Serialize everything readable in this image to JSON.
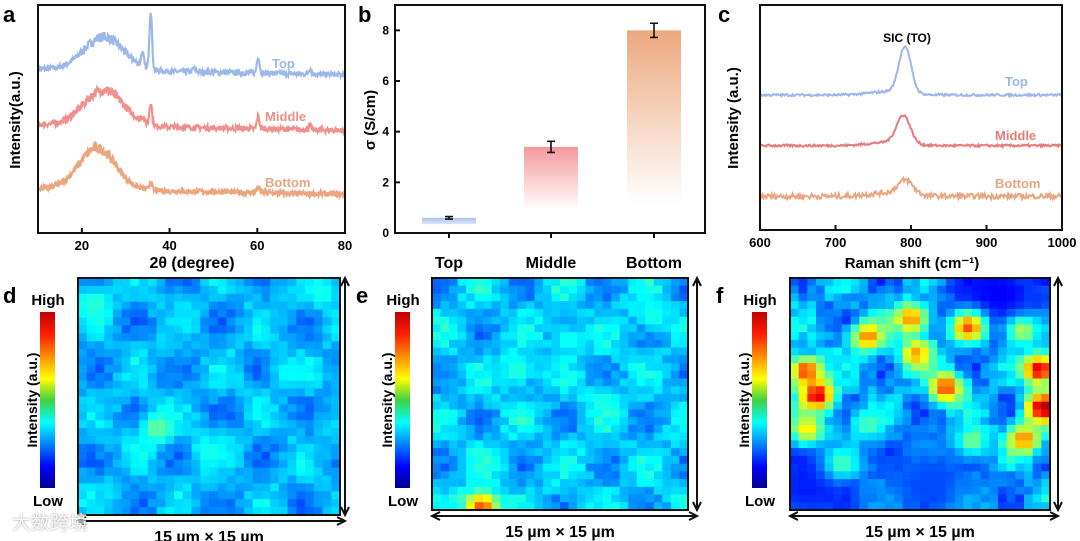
{
  "chart_data": [
    {
      "panel": "a",
      "type": "line",
      "xlabel": "2θ (degree)",
      "ylabel": "Intensity(a.u.)",
      "xlim": [
        10,
        80
      ],
      "xticks": [
        "20",
        "40",
        "60",
        "80"
      ],
      "xtick_values": [
        20,
        40,
        60,
        80
      ],
      "ylim": [
        -0.8,
        3.3
      ],
      "series": [
        {
          "name": "Top",
          "color": "#9db8e8",
          "offset": 2.15,
          "hump": {
            "center": 25,
            "sigma": 4.5,
            "height": 0.6
          },
          "peaks": [
            [
              33.8,
              0.25
            ],
            [
              35.7,
              1.05
            ],
            [
              45.5,
              0.06
            ],
            [
              60.2,
              0.3
            ],
            [
              72,
              0.1
            ]
          ]
        },
        {
          "name": "Middle",
          "color": "#f0908c",
          "offset": 1.15,
          "hump": {
            "center": 25,
            "sigma": 4.5,
            "height": 0.65
          },
          "peaks": [
            [
              33.8,
              0.1
            ],
            [
              35.7,
              0.4
            ],
            [
              60.2,
              0.22
            ],
            [
              72,
              0.08
            ]
          ]
        },
        {
          "name": "Bottom",
          "color": "#eba57f",
          "offset": 0,
          "hump": {
            "center": 23.5,
            "sigma": 4.2,
            "height": 0.75
          },
          "peaks": [
            [
              35.7,
              0.15
            ],
            [
              60.2,
              0.1
            ]
          ]
        }
      ]
    },
    {
      "panel": "b",
      "type": "bar",
      "ylabel": "σ (S/cm)",
      "ylim": [
        0,
        9
      ],
      "yticks": [
        "0",
        "2",
        "4",
        "6",
        "8"
      ],
      "ytick_values": [
        0,
        2,
        4,
        6,
        8
      ],
      "categories": [
        "Top",
        "Middle",
        "Bottom"
      ],
      "values": [
        0.6,
        3.4,
        8.0
      ],
      "errors": [
        0.05,
        0.22,
        0.28
      ],
      "colors": [
        "#a8c2ee",
        "#f39a9a",
        "#eca97f"
      ]
    },
    {
      "panel": "c",
      "type": "line",
      "xlabel": "Raman shift (cm⁻¹)",
      "ylabel": "Intensity (a.u.)",
      "xlim": [
        600,
        1000
      ],
      "xticks": [
        "600",
        "700",
        "800",
        "900",
        "1000"
      ],
      "xtick_values": [
        600,
        700,
        800,
        900,
        1000
      ],
      "ylim": [
        -0.6,
        3.4
      ],
      "annotation": "SIC (TO)",
      "series": [
        {
          "name": "Top",
          "color": "#9db8e8",
          "offset": 1.8,
          "peak": {
            "center": 792,
            "sigma": 8,
            "height": 0.83
          }
        },
        {
          "name": "Middle",
          "color": "#e87c7a",
          "offset": 0.9,
          "peak": {
            "center": 790,
            "sigma": 9,
            "height": 0.5
          }
        },
        {
          "name": "Bottom",
          "color": "#eba57f",
          "offset": 0,
          "peak": {
            "center": 793,
            "sigma": 10,
            "height": 0.25
          }
        }
      ]
    },
    {
      "panel": "d",
      "type": "heatmap",
      "scale_label": "15 µm × 15 µm",
      "colorbar_label": "Intensity (a.u.)",
      "colorbar_high": "High",
      "colorbar_low": "Low",
      "extent_um": 15,
      "base": 0.3,
      "variation": 0.07,
      "hotspots": [
        [
          4.5,
          9.5,
          0.48
        ],
        [
          1,
          1.5,
          0.42
        ],
        [
          7.5,
          11,
          0.4
        ],
        [
          12,
          6,
          0.38
        ],
        [
          14,
          1,
          0.4
        ]
      ]
    },
    {
      "panel": "e",
      "type": "heatmap",
      "scale_label": "15 µm × 15 µm",
      "colorbar_label": "Intensity (a.u.)",
      "colorbar_high": "High",
      "colorbar_low": "Low",
      "extent_um": 15,
      "base": 0.32,
      "variation": 0.08,
      "hotspots": [
        [
          2.9,
          14.8,
          0.8
        ],
        [
          5,
          6,
          0.42
        ],
        [
          10,
          8,
          0.4
        ],
        [
          13,
          2.5,
          0.4
        ],
        [
          3,
          12,
          0.4
        ],
        [
          8,
          4,
          0.4
        ]
      ]
    },
    {
      "panel": "f",
      "type": "heatmap",
      "scale_label": "15 µm × 15 µm",
      "colorbar_label": "Intensity (a.u.)",
      "colorbar_high": "High",
      "colorbar_low": "Low",
      "extent_um": 15,
      "base": 0.28,
      "variation": 0.1,
      "cold": [
        [
          12,
          1,
          0.12
        ],
        [
          1,
          13.5,
          0.15
        ],
        [
          8,
          13,
          0.2
        ]
      ],
      "hotspots": [
        [
          4.5,
          3.8,
          0.75
        ],
        [
          7,
          2.6,
          0.75
        ],
        [
          10.3,
          3.2,
          0.8
        ],
        [
          13.4,
          3.4,
          0.55
        ],
        [
          0.9,
          6,
          0.82
        ],
        [
          1.6,
          7.6,
          0.92
        ],
        [
          1,
          9.8,
          0.65
        ],
        [
          7.3,
          4.9,
          0.72
        ],
        [
          9,
          7.1,
          0.82
        ],
        [
          14.4,
          5.9,
          0.92
        ],
        [
          14.6,
          8.4,
          0.97
        ],
        [
          13.5,
          10.4,
          0.75
        ],
        [
          4.5,
          9.5,
          0.45
        ],
        [
          10.5,
          10.5,
          0.5
        ],
        [
          3,
          12,
          0.45
        ]
      ]
    }
  ],
  "panel_labels": [
    "a",
    "b",
    "c",
    "d",
    "e",
    "f"
  ],
  "watermark": "大数跨境"
}
